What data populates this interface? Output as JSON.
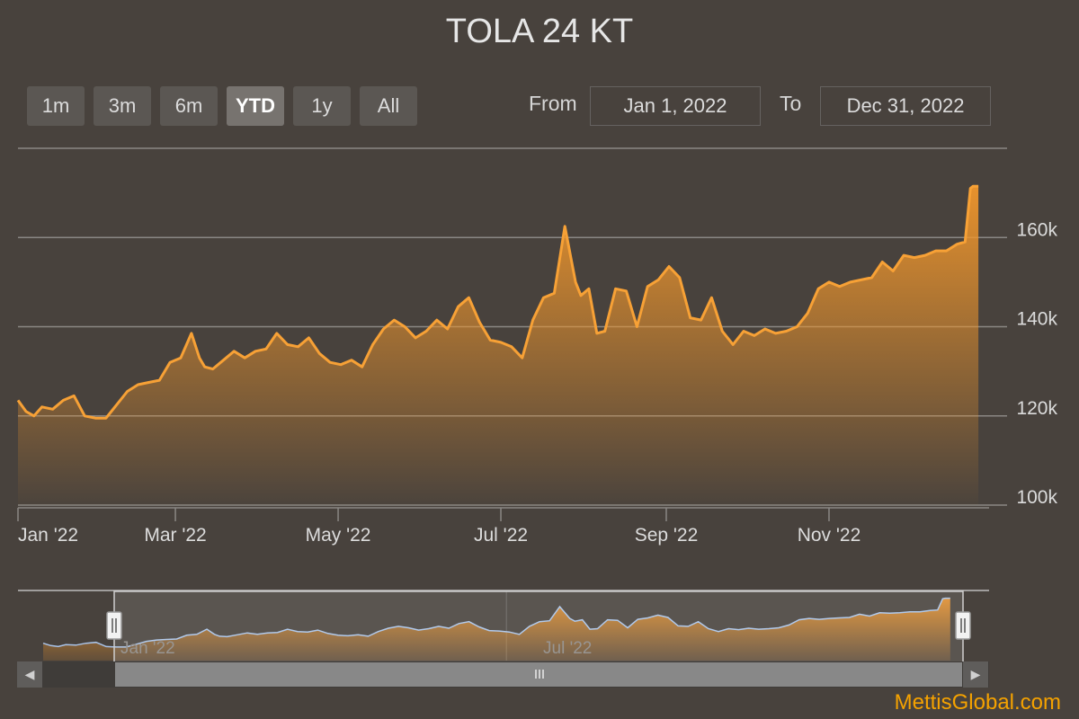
{
  "title": "TOLA 24 KT",
  "range_selector": {
    "buttons": [
      "1m",
      "3m",
      "6m",
      "YTD",
      "1y",
      "All"
    ],
    "selected": "YTD",
    "from_label": "From",
    "from_value": "Jan 1, 2022",
    "to_label": "To",
    "to_value": "Dec 31, 2022"
  },
  "watermark": "MettisGlobal.com",
  "navigator": {
    "tick_labels": [
      "Jan '22",
      "Jul '22"
    ]
  },
  "colors": {
    "background": "#48423d",
    "line": "#f7a136",
    "area_top": "#f0962c",
    "navigator_line": "#a9c4ea",
    "brand": "#f5a200"
  },
  "chart_data": {
    "type": "area",
    "title": "TOLA 24 KT",
    "xlabel": "",
    "ylabel": "",
    "ylim": [
      100000,
      180000
    ],
    "yticks": [
      100000,
      120000,
      140000,
      160000
    ],
    "ytick_labels": [
      "100k",
      "120k",
      "140k",
      "160k"
    ],
    "xtick_labels": [
      "Jan '22",
      "Mar '22",
      "May '22",
      "Jul '22",
      "Sep '22",
      "Nov '22"
    ],
    "xticks": [
      "2022-01-01",
      "2022-03-01",
      "2022-05-01",
      "2022-07-01",
      "2022-09-01",
      "2022-11-01"
    ],
    "grid": true,
    "x_range": [
      "2022-01-01",
      "2022-12-31"
    ],
    "series": [
      {
        "x": [
          "2022-01-01",
          "2022-01-04",
          "2022-01-07",
          "2022-01-10",
          "2022-01-14",
          "2022-01-18",
          "2022-01-22",
          "2022-01-26",
          "2022-01-30",
          "2022-02-03",
          "2022-02-07",
          "2022-02-11",
          "2022-02-15",
          "2022-02-19",
          "2022-02-23",
          "2022-02-27",
          "2022-03-03",
          "2022-03-07",
          "2022-03-10",
          "2022-03-12",
          "2022-03-15",
          "2022-03-19",
          "2022-03-23",
          "2022-03-27",
          "2022-03-31",
          "2022-04-04",
          "2022-04-08",
          "2022-04-12",
          "2022-04-16",
          "2022-04-20",
          "2022-04-24",
          "2022-04-28",
          "2022-05-02",
          "2022-05-06",
          "2022-05-10",
          "2022-05-14",
          "2022-05-18",
          "2022-05-22",
          "2022-05-26",
          "2022-05-30",
          "2022-06-03",
          "2022-06-07",
          "2022-06-11",
          "2022-06-15",
          "2022-06-19",
          "2022-06-23",
          "2022-06-27",
          "2022-07-01",
          "2022-07-05",
          "2022-07-09",
          "2022-07-13",
          "2022-07-17",
          "2022-07-21",
          "2022-07-25",
          "2022-07-29",
          "2022-07-31",
          "2022-08-03",
          "2022-08-06",
          "2022-08-09",
          "2022-08-13",
          "2022-08-17",
          "2022-08-21",
          "2022-08-25",
          "2022-08-29",
          "2022-09-02",
          "2022-09-06",
          "2022-09-10",
          "2022-09-14",
          "2022-09-18",
          "2022-09-22",
          "2022-09-26",
          "2022-09-30",
          "2022-10-04",
          "2022-10-08",
          "2022-10-12",
          "2022-10-16",
          "2022-10-20",
          "2022-10-24",
          "2022-10-28",
          "2022-11-01",
          "2022-11-05",
          "2022-11-09",
          "2022-11-13",
          "2022-11-17",
          "2022-11-21",
          "2022-11-25",
          "2022-11-29",
          "2022-12-03",
          "2022-12-07",
          "2022-12-11",
          "2022-12-15",
          "2022-12-19",
          "2022-12-22",
          "2022-12-24",
          "2022-12-25",
          "2022-12-27"
        ],
        "values": [
          123500,
          121000,
          120000,
          122000,
          121500,
          123500,
          124500,
          120000,
          119500,
          119500,
          122500,
          125500,
          127000,
          127500,
          128000,
          132000,
          133000,
          138500,
          133000,
          131000,
          130500,
          132500,
          134500,
          133000,
          134500,
          135000,
          138500,
          136000,
          135500,
          137500,
          134000,
          132000,
          131500,
          132500,
          131000,
          136000,
          139500,
          141500,
          140000,
          137500,
          139000,
          141500,
          139500,
          144500,
          146500,
          141000,
          137000,
          136500,
          135500,
          133000,
          141500,
          146500,
          147500,
          162500,
          150000,
          147000,
          148500,
          138500,
          139000,
          148500,
          148000,
          140000,
          149000,
          150500,
          153500,
          151000,
          142000,
          141500,
          146500,
          139000,
          136000,
          139000,
          138000,
          139500,
          138500,
          139000,
          140000,
          143000,
          148500,
          150000,
          149000,
          150000,
          150500,
          151000,
          154500,
          152500,
          156000,
          155500,
          156000,
          157000,
          157000,
          158500,
          159000,
          171000,
          171500,
          171500
        ]
      }
    ]
  }
}
